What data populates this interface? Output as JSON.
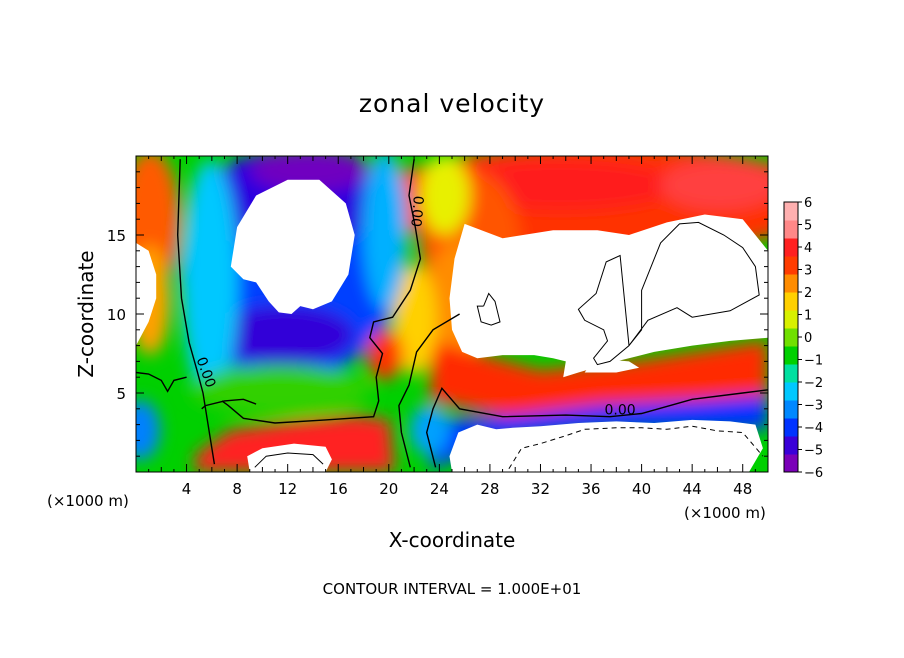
{
  "chart_data": {
    "type": "heatmap",
    "title": "zonal velocity",
    "xlabel": "X-coordinate",
    "ylabel": "Z-coordinate",
    "x_unit_label": "(×1000 m)",
    "x_unit_label_right": "(×1000 m)",
    "footer": "CONTOUR INTERVAL = 1.000E+01",
    "xlim": [
      0,
      50
    ],
    "ylim": [
      0,
      20
    ],
    "x_ticks": [
      4,
      8,
      12,
      16,
      20,
      24,
      28,
      32,
      36,
      40,
      44,
      48
    ],
    "y_ticks": [
      5,
      10,
      15
    ],
    "colorbar": {
      "range": [
        -6,
        6
      ],
      "ticks": [
        6,
        5,
        4,
        3,
        2,
        1,
        0,
        -1,
        -2,
        -3,
        -4,
        -5,
        -6
      ],
      "tick_labels": [
        "6",
        "5",
        "4",
        "3",
        "2",
        "1",
        "0",
        "−1",
        "−2",
        "−3",
        "−4",
        "−5",
        "−6"
      ],
      "colors": [
        "#7a00b8",
        "#3a00d8",
        "#0033ff",
        "#0088ff",
        "#00c8ff",
        "#00e0a0",
        "#00d000",
        "#70e000",
        "#d8f000",
        "#ffd000",
        "#ff8c00",
        "#ff3c00",
        "#ff2020",
        "#ff8888",
        "#ffb0b0"
      ]
    },
    "contour_labels": [
      {
        "text": "0.00",
        "x": 5.5,
        "y": 6.3,
        "angle": 70
      },
      {
        "text": "0.00",
        "x": 22.2,
        "y": 16.5,
        "angle": 95
      },
      {
        "text": "0.00",
        "x": 38.3,
        "y": 3.9,
        "angle": 0
      }
    ],
    "zero_contours": [
      [
        [
          3.5,
          19.8
        ],
        [
          3.3,
          15
        ],
        [
          3.6,
          11
        ],
        [
          4.2,
          8.2
        ],
        [
          4.8,
          6.5
        ],
        [
          5.3,
          5
        ],
        [
          5.6,
          3.5
        ],
        [
          5.9,
          2
        ],
        [
          6.2,
          0.5
        ]
      ],
      [
        [
          0,
          6.3
        ],
        [
          1,
          6.2
        ],
        [
          2,
          5.8
        ],
        [
          2.5,
          5.1
        ],
        [
          3,
          5.8
        ],
        [
          4,
          6.0
        ]
      ],
      [
        [
          22.0,
          19.8
        ],
        [
          21.6,
          17.5
        ],
        [
          22.1,
          15.5
        ],
        [
          22.5,
          13.5
        ],
        [
          21.7,
          11.5
        ],
        [
          20.3,
          9.8
        ],
        [
          18.8,
          9.5
        ],
        [
          18.5,
          8.5
        ],
        [
          19.5,
          7.5
        ],
        [
          19.0,
          6.0
        ],
        [
          19.2,
          4.5
        ],
        [
          18.8,
          3.5
        ],
        [
          15,
          3.3
        ],
        [
          11,
          3.1
        ],
        [
          8.5,
          3.4
        ],
        [
          7.3,
          4.2
        ],
        [
          6.8,
          4.5
        ]
      ],
      [
        [
          21.7,
          0.3
        ],
        [
          21.0,
          2.5
        ],
        [
          20.8,
          4.2
        ],
        [
          21.6,
          5.5
        ],
        [
          22.2,
          7.6
        ],
        [
          23.5,
          9.0
        ],
        [
          25.6,
          10.0
        ]
      ],
      [
        [
          23.7,
          0.3
        ],
        [
          23.0,
          2.5
        ],
        [
          23.5,
          4.0
        ],
        [
          24.2,
          5.3
        ],
        [
          25.6,
          4.0
        ],
        [
          29,
          3.5
        ],
        [
          34,
          3.6
        ],
        [
          37.5,
          3.5
        ],
        [
          40,
          3.7
        ],
        [
          44,
          4.6
        ],
        [
          48,
          5.0
        ],
        [
          50,
          5.2
        ]
      ],
      [
        [
          5.2,
          4.0
        ],
        [
          5.5,
          4.2
        ],
        [
          7.0,
          4.5
        ],
        [
          8.5,
          4.6
        ],
        [
          9.5,
          4.3
        ]
      ]
    ],
    "neg_contours": [
      [
        [
          29.5,
          0.2
        ],
        [
          30.5,
          1.5
        ],
        [
          32,
          1.8
        ],
        [
          34,
          2.3
        ],
        [
          35.5,
          2.7
        ],
        [
          38,
          2.8
        ],
        [
          40,
          2.8
        ],
        [
          42,
          2.7
        ],
        [
          44,
          2.9
        ],
        [
          46,
          2.6
        ],
        [
          48,
          2.5
        ],
        [
          49.6,
          1.0
        ]
      ]
    ],
    "pos_contours": [
      [
        [
          39,
          8.0
        ],
        [
          40,
          9.0
        ],
        [
          40,
          11.5
        ],
        [
          41.5,
          14.5
        ],
        [
          43,
          15.7
        ],
        [
          44.5,
          15.8
        ],
        [
          46.5,
          15.0
        ],
        [
          48,
          14.2
        ],
        [
          49.0,
          13.0
        ],
        [
          49.3,
          11.2
        ],
        [
          47.0,
          10.2
        ],
        [
          44,
          9.8
        ],
        [
          42.8,
          10.4
        ],
        [
          40.5,
          9.6
        ],
        [
          39.0,
          8.0
        ],
        [
          37.5,
          7.0
        ],
        [
          36.5,
          6.8
        ],
        [
          36.2,
          7.2
        ],
        [
          37.3,
          8.3
        ],
        [
          37.0,
          9.0
        ],
        [
          35.5,
          9.6
        ],
        [
          35.0,
          10.3
        ],
        [
          36.4,
          11.3
        ],
        [
          37.2,
          13.3
        ],
        [
          38.3,
          13.7
        ],
        [
          39.0,
          8.0
        ]
      ],
      [
        [
          27.5,
          10.5
        ],
        [
          27.9,
          11.3
        ],
        [
          28.4,
          10.8
        ],
        [
          28.8,
          9.5
        ],
        [
          28.1,
          9.3
        ],
        [
          27.3,
          9.5
        ],
        [
          27.0,
          10.5
        ],
        [
          27.5,
          10.5
        ]
      ],
      [
        [
          9.4,
          0.3
        ],
        [
          10.3,
          1.0
        ],
        [
          12.0,
          1.2
        ],
        [
          14.0,
          1.1
        ],
        [
          14.8,
          0.5
        ]
      ]
    ],
    "white_regions": [
      [
        [
          7.5,
          13.0
        ],
        [
          8.0,
          15.5
        ],
        [
          9.5,
          17.5
        ],
        [
          12,
          18.5
        ],
        [
          14.5,
          18.5
        ],
        [
          16.6,
          17.0
        ],
        [
          17.3,
          15.0
        ],
        [
          16.8,
          12.5
        ],
        [
          15.5,
          10.8
        ],
        [
          14.0,
          10.3
        ],
        [
          13.0,
          10.5
        ],
        [
          12.3,
          10.0
        ],
        [
          11.3,
          10.1
        ],
        [
          10.5,
          10.8
        ],
        [
          9.5,
          12.0
        ],
        [
          8.5,
          12.2
        ],
        [
          7.5,
          13.0
        ]
      ],
      [
        [
          26.0,
          15.7
        ],
        [
          29,
          14.8
        ],
        [
          33,
          15.3
        ],
        [
          36.5,
          15.3
        ],
        [
          39,
          15.0
        ],
        [
          42,
          15.8
        ],
        [
          45,
          16.3
        ],
        [
          48,
          16.0
        ],
        [
          50,
          14.0
        ],
        [
          50,
          8.5
        ],
        [
          47,
          8.3
        ],
        [
          44,
          8.0
        ],
        [
          41,
          7.6
        ],
        [
          38,
          7.0
        ],
        [
          35,
          6.3
        ],
        [
          33.8,
          6.0
        ],
        [
          34,
          7.0
        ],
        [
          33,
          7.2
        ],
        [
          31.5,
          7.4
        ],
        [
          29,
          7.4
        ],
        [
          27,
          7.2
        ],
        [
          25.8,
          7.6
        ],
        [
          25.0,
          9.0
        ],
        [
          24.8,
          11.0
        ],
        [
          25.2,
          13.5
        ],
        [
          26.0,
          15.7
        ]
      ],
      [
        [
          0,
          8.0
        ],
        [
          1.0,
          9.5
        ],
        [
          1.6,
          11.0
        ],
        [
          1.6,
          12.5
        ],
        [
          1.0,
          14.0
        ],
        [
          0,
          14.5
        ]
      ],
      [
        [
          25.0,
          0
        ],
        [
          24.8,
          1.0
        ],
        [
          25.5,
          2.5
        ],
        [
          27.0,
          3.0
        ],
        [
          28.5,
          2.7
        ],
        [
          29.8,
          2.8
        ],
        [
          32,
          2.9
        ],
        [
          35,
          3.1
        ],
        [
          38,
          3.2
        ],
        [
          41,
          3.1
        ],
        [
          44,
          3.3
        ],
        [
          47,
          3.2
        ],
        [
          49,
          3.0
        ],
        [
          49.6,
          1.5
        ],
        [
          48.5,
          0
        ],
        [
          25.0,
          0
        ]
      ],
      [
        [
          9.0,
          0
        ],
        [
          8.8,
          1.0
        ],
        [
          10.0,
          1.5
        ],
        [
          12.5,
          1.8
        ],
        [
          15.0,
          1.6
        ],
        [
          15.5,
          0.8
        ],
        [
          15.0,
          0
        ],
        [
          9.0,
          0
        ]
      ],
      [
        [
          35.5,
          6.3
        ],
        [
          36,
          6.9
        ],
        [
          37.5,
          7.1
        ],
        [
          39,
          7.0
        ],
        [
          39.8,
          6.6
        ],
        [
          38,
          6.3
        ],
        [
          35.5,
          6.3
        ]
      ]
    ]
  }
}
